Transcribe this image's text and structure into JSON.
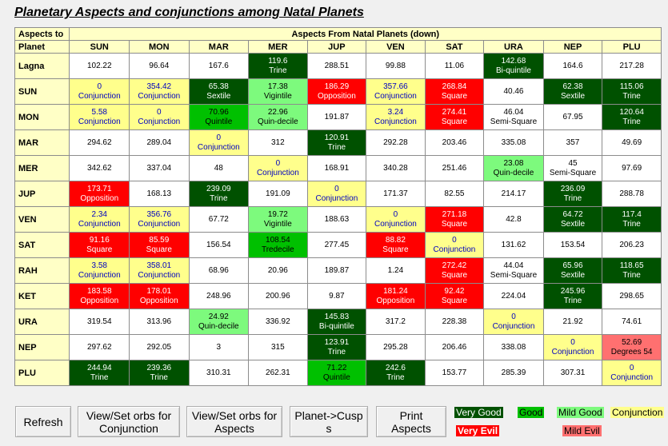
{
  "title": "Planetary Aspects and conjunctions among Natal Planets",
  "header": {
    "corner_top": "Aspects to",
    "corner_bottom": "Planet",
    "span_label": "Aspects From Natal  Planets (down)",
    "columns": [
      "SUN",
      "MON",
      "MAR",
      "MER",
      "JUP",
      "VEN",
      "SAT",
      "URA",
      "NEP",
      "PLU"
    ]
  },
  "rows": [
    {
      "label": "Lagna",
      "cells": [
        {
          "v": "102.22",
          "a": "",
          "c": "none"
        },
        {
          "v": "96.64",
          "a": "",
          "c": "none"
        },
        {
          "v": "167.6",
          "a": "",
          "c": "none"
        },
        {
          "v": "119.6",
          "a": "Trine",
          "c": "very-good"
        },
        {
          "v": "288.51",
          "a": "",
          "c": "none"
        },
        {
          "v": "99.88",
          "a": "",
          "c": "none"
        },
        {
          "v": "11.06",
          "a": "",
          "c": "none"
        },
        {
          "v": "142.68",
          "a": "Bi-quintile",
          "c": "very-good"
        },
        {
          "v": "164.6",
          "a": "",
          "c": "none"
        },
        {
          "v": "217.28",
          "a": "",
          "c": "none"
        }
      ]
    },
    {
      "label": "SUN",
      "cells": [
        {
          "v": "0",
          "a": "Conjunction",
          "c": "conj"
        },
        {
          "v": "354.42",
          "a": "Conjunction",
          "c": "conj"
        },
        {
          "v": "65.38",
          "a": "Sextile",
          "c": "very-good"
        },
        {
          "v": "17.38",
          "a": "Vigintile",
          "c": "mild-good"
        },
        {
          "v": "186.29",
          "a": "Opposition",
          "c": "very-evil"
        },
        {
          "v": "357.66",
          "a": "Conjunction",
          "c": "conj"
        },
        {
          "v": "268.84",
          "a": "Square",
          "c": "very-evil"
        },
        {
          "v": "40.46",
          "a": "",
          "c": "none"
        },
        {
          "v": "62.38",
          "a": "Sextile",
          "c": "very-good"
        },
        {
          "v": "115.06",
          "a": "Trine",
          "c": "very-good"
        }
      ]
    },
    {
      "label": "MON",
      "cells": [
        {
          "v": "5.58",
          "a": "Conjunction",
          "c": "conj"
        },
        {
          "v": "0",
          "a": "Conjunction",
          "c": "conj"
        },
        {
          "v": "70.96",
          "a": "Quintile",
          "c": "good"
        },
        {
          "v": "22.96",
          "a": "Quin-decile",
          "c": "mild-good"
        },
        {
          "v": "191.87",
          "a": "",
          "c": "none"
        },
        {
          "v": "3.24",
          "a": "Conjunction",
          "c": "conj"
        },
        {
          "v": "274.41",
          "a": "Square",
          "c": "very-evil"
        },
        {
          "v": "46.04",
          "a": "Semi-Square",
          "c": "none"
        },
        {
          "v": "67.95",
          "a": "",
          "c": "none"
        },
        {
          "v": "120.64",
          "a": "Trine",
          "c": "very-good"
        }
      ]
    },
    {
      "label": "MAR",
      "cells": [
        {
          "v": "294.62",
          "a": "",
          "c": "none"
        },
        {
          "v": "289.04",
          "a": "",
          "c": "none"
        },
        {
          "v": "0",
          "a": "Conjunction",
          "c": "conj"
        },
        {
          "v": "312",
          "a": "",
          "c": "none"
        },
        {
          "v": "120.91",
          "a": "Trine",
          "c": "very-good"
        },
        {
          "v": "292.28",
          "a": "",
          "c": "none"
        },
        {
          "v": "203.46",
          "a": "",
          "c": "none"
        },
        {
          "v": "335.08",
          "a": "",
          "c": "none"
        },
        {
          "v": "357",
          "a": "",
          "c": "none"
        },
        {
          "v": "49.69",
          "a": "",
          "c": "none"
        }
      ]
    },
    {
      "label": "MER",
      "cells": [
        {
          "v": "342.62",
          "a": "",
          "c": "none"
        },
        {
          "v": "337.04",
          "a": "",
          "c": "none"
        },
        {
          "v": "48",
          "a": "",
          "c": "none"
        },
        {
          "v": "0",
          "a": "Conjunction",
          "c": "conj"
        },
        {
          "v": "168.91",
          "a": "",
          "c": "none"
        },
        {
          "v": "340.28",
          "a": "",
          "c": "none"
        },
        {
          "v": "251.46",
          "a": "",
          "c": "none"
        },
        {
          "v": "23.08",
          "a": "Quin-decile",
          "c": "mild-good"
        },
        {
          "v": "45",
          "a": "Semi-Square",
          "c": "none"
        },
        {
          "v": "97.69",
          "a": "",
          "c": "none"
        }
      ]
    },
    {
      "label": "JUP",
      "cells": [
        {
          "v": "173.71",
          "a": "Opposition",
          "c": "very-evil"
        },
        {
          "v": "168.13",
          "a": "",
          "c": "none"
        },
        {
          "v": "239.09",
          "a": "Trine",
          "c": "very-good"
        },
        {
          "v": "191.09",
          "a": "",
          "c": "none"
        },
        {
          "v": "0",
          "a": "Conjunction",
          "c": "conj"
        },
        {
          "v": "171.37",
          "a": "",
          "c": "none"
        },
        {
          "v": "82.55",
          "a": "",
          "c": "none"
        },
        {
          "v": "214.17",
          "a": "",
          "c": "none"
        },
        {
          "v": "236.09",
          "a": "Trine",
          "c": "very-good"
        },
        {
          "v": "288.78",
          "a": "",
          "c": "none"
        }
      ]
    },
    {
      "label": "VEN",
      "cells": [
        {
          "v": "2.34",
          "a": "Conjunction",
          "c": "conj"
        },
        {
          "v": "356.76",
          "a": "Conjunction",
          "c": "conj"
        },
        {
          "v": "67.72",
          "a": "",
          "c": "none"
        },
        {
          "v": "19.72",
          "a": "Vigintile",
          "c": "mild-good"
        },
        {
          "v": "188.63",
          "a": "",
          "c": "none"
        },
        {
          "v": "0",
          "a": "Conjunction",
          "c": "conj"
        },
        {
          "v": "271.18",
          "a": "Square",
          "c": "very-evil"
        },
        {
          "v": "42.8",
          "a": "",
          "c": "none"
        },
        {
          "v": "64.72",
          "a": "Sextile",
          "c": "very-good"
        },
        {
          "v": "117.4",
          "a": "Trine",
          "c": "very-good"
        }
      ]
    },
    {
      "label": "SAT",
      "cells": [
        {
          "v": "91.16",
          "a": "Square",
          "c": "very-evil"
        },
        {
          "v": "85.59",
          "a": "Square",
          "c": "very-evil"
        },
        {
          "v": "156.54",
          "a": "",
          "c": "none"
        },
        {
          "v": "108.54",
          "a": "Tredecile",
          "c": "good"
        },
        {
          "v": "277.45",
          "a": "",
          "c": "none"
        },
        {
          "v": "88.82",
          "a": "Square",
          "c": "very-evil"
        },
        {
          "v": "0",
          "a": "Conjunction",
          "c": "conj"
        },
        {
          "v": "131.62",
          "a": "",
          "c": "none"
        },
        {
          "v": "153.54",
          "a": "",
          "c": "none"
        },
        {
          "v": "206.23",
          "a": "",
          "c": "none"
        }
      ]
    },
    {
      "label": "RAH",
      "cells": [
        {
          "v": "3.58",
          "a": "Conjunction",
          "c": "conj"
        },
        {
          "v": "358.01",
          "a": "Conjunction",
          "c": "conj"
        },
        {
          "v": "68.96",
          "a": "",
          "c": "none"
        },
        {
          "v": "20.96",
          "a": "",
          "c": "none"
        },
        {
          "v": "189.87",
          "a": "",
          "c": "none"
        },
        {
          "v": "1.24",
          "a": "",
          "c": "none"
        },
        {
          "v": "272.42",
          "a": "Square",
          "c": "very-evil"
        },
        {
          "v": "44.04",
          "a": "Semi-Square",
          "c": "none"
        },
        {
          "v": "65.96",
          "a": "Sextile",
          "c": "very-good"
        },
        {
          "v": "118.65",
          "a": "Trine",
          "c": "very-good"
        }
      ]
    },
    {
      "label": "KET",
      "cells": [
        {
          "v": "183.58",
          "a": "Opposition",
          "c": "very-evil"
        },
        {
          "v": "178.01",
          "a": "Opposition",
          "c": "very-evil"
        },
        {
          "v": "248.96",
          "a": "",
          "c": "none"
        },
        {
          "v": "200.96",
          "a": "",
          "c": "none"
        },
        {
          "v": "9.87",
          "a": "",
          "c": "none"
        },
        {
          "v": "181.24",
          "a": "Opposition",
          "c": "very-evil"
        },
        {
          "v": "92.42",
          "a": "Square",
          "c": "very-evil"
        },
        {
          "v": "224.04",
          "a": "",
          "c": "none"
        },
        {
          "v": "245.96",
          "a": "Trine",
          "c": "very-good"
        },
        {
          "v": "298.65",
          "a": "",
          "c": "none"
        }
      ]
    },
    {
      "label": "URA",
      "cells": [
        {
          "v": "319.54",
          "a": "",
          "c": "none"
        },
        {
          "v": "313.96",
          "a": "",
          "c": "none"
        },
        {
          "v": "24.92",
          "a": "Quin-decile",
          "c": "mild-good"
        },
        {
          "v": "336.92",
          "a": "",
          "c": "none"
        },
        {
          "v": "145.83",
          "a": "Bi-quintile",
          "c": "very-good"
        },
        {
          "v": "317.2",
          "a": "",
          "c": "none"
        },
        {
          "v": "228.38",
          "a": "",
          "c": "none"
        },
        {
          "v": "0",
          "a": "Conjunction",
          "c": "conj"
        },
        {
          "v": "21.92",
          "a": "",
          "c": "none"
        },
        {
          "v": "74.61",
          "a": "",
          "c": "none"
        }
      ]
    },
    {
      "label": "NEP",
      "cells": [
        {
          "v": "297.62",
          "a": "",
          "c": "none"
        },
        {
          "v": "292.05",
          "a": "",
          "c": "none"
        },
        {
          "v": "3",
          "a": "",
          "c": "none"
        },
        {
          "v": "315",
          "a": "",
          "c": "none"
        },
        {
          "v": "123.91",
          "a": "Trine",
          "c": "very-good"
        },
        {
          "v": "295.28",
          "a": "",
          "c": "none"
        },
        {
          "v": "206.46",
          "a": "",
          "c": "none"
        },
        {
          "v": "338.08",
          "a": "",
          "c": "none"
        },
        {
          "v": "0",
          "a": "Conjunction",
          "c": "conj"
        },
        {
          "v": "52.69",
          "a": "Degrees 54",
          "c": "mild-evil"
        }
      ]
    },
    {
      "label": "PLU",
      "cells": [
        {
          "v": "244.94",
          "a": "Trine",
          "c": "very-good"
        },
        {
          "v": "239.36",
          "a": "Trine",
          "c": "very-good"
        },
        {
          "v": "310.31",
          "a": "",
          "c": "none"
        },
        {
          "v": "262.31",
          "a": "",
          "c": "none"
        },
        {
          "v": "71.22",
          "a": "Quintile",
          "c": "good"
        },
        {
          "v": "242.6",
          "a": "Trine",
          "c": "very-good"
        },
        {
          "v": "153.77",
          "a": "",
          "c": "none"
        },
        {
          "v": "285.39",
          "a": "",
          "c": "none"
        },
        {
          "v": "307.31",
          "a": "",
          "c": "none"
        },
        {
          "v": "0",
          "a": "Conjunction",
          "c": "conj"
        }
      ]
    }
  ],
  "buttons": {
    "refresh": "Refresh",
    "orbs_conjunction": "View/Set orbs for\nConjunction",
    "orbs_aspects": "View/Set orbs for\nAspects",
    "planet_cusps": "Planet->Cusp\ns",
    "print_aspects": "Print\nAspects"
  },
  "legend": {
    "very_good": "Very Good",
    "good": "Good",
    "mild_good": "Mild Good",
    "conjunction": "Conjunction",
    "very_evil": "Very Evil",
    "mild_evil": "Mild Evil"
  },
  "colors": {
    "very_good": "#005100",
    "good": "#00c000",
    "mild_good": "#7dfa7d",
    "conjunction": "#ffff8c",
    "very_evil": "#ff0000",
    "mild_evil": "#ff7070",
    "header_bg": "#ffffc6"
  }
}
